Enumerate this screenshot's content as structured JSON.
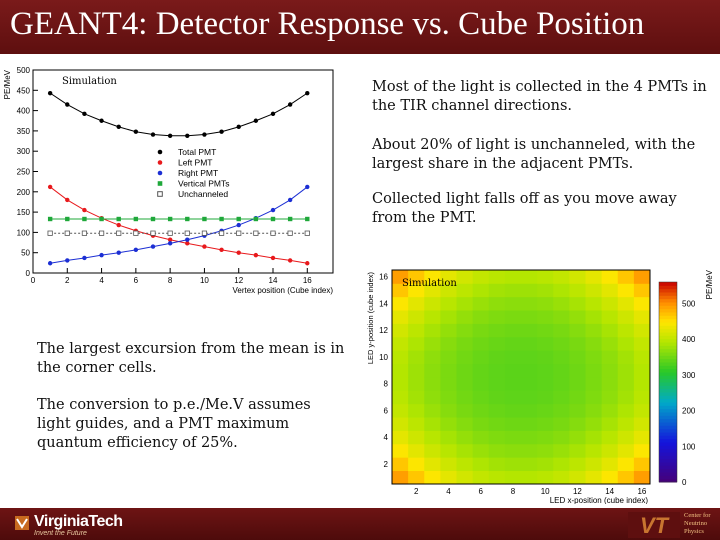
{
  "slide": {
    "title": "GEANT4: Detector Response vs. Cube Position",
    "bullets_right": [
      "Most of the light is collected in the 4 PMTs in the TIR channel directions.",
      "About 20% of light is unchanneled, with the largest share in the adjacent PMTs.",
      "Collected light falls off as you move away from the PMT."
    ],
    "bullets_left": [
      "The largest excursion from the mean is in the corner cells.",
      "The conversion to p.e./Me.V assumes light guides, and a PMT maximum quantum efficiency of 25%."
    ]
  },
  "footer": {
    "logo_name": "VirginiaTech",
    "logo_tagline": "Invent the Future",
    "vt_mark": "VT",
    "center_label": [
      "Center for",
      "Neutrino",
      "Physics"
    ]
  },
  "colors": {
    "title_bar": "#6b1414",
    "total": "#000000",
    "left": "#e8191c",
    "right": "#1c2fd4",
    "vertical": "#1fa83a",
    "unchanneled": "#555555"
  },
  "chart_data": [
    {
      "type": "line",
      "sim_label": "Simulation",
      "ylabel": "PE/MeV",
      "xlabel": "Vertex position (Cube index)",
      "xlim": [
        0,
        17.5
      ],
      "ylim": [
        0,
        500
      ],
      "xticks": [
        0,
        2,
        4,
        6,
        8,
        10,
        12,
        14,
        16
      ],
      "yticks": [
        0,
        50,
        100,
        150,
        200,
        250,
        300,
        350,
        400,
        450,
        500
      ],
      "x": [
        1,
        2,
        3,
        4,
        5,
        6,
        7,
        8,
        9,
        10,
        11,
        12,
        13,
        14,
        15,
        16
      ],
      "series": [
        {
          "name": "Total PMT",
          "key": "total",
          "marker": "circle",
          "values": [
            443,
            415,
            392,
            375,
            360,
            348,
            341,
            338,
            338,
            341,
            348,
            360,
            375,
            392,
            415,
            443
          ]
        },
        {
          "name": "Left PMT",
          "key": "left",
          "marker": "circle",
          "values": [
            212,
            180,
            155,
            135,
            118,
            104,
            92,
            82,
            73,
            65,
            57,
            50,
            44,
            37,
            31,
            24
          ]
        },
        {
          "name": "Right PMT",
          "key": "right",
          "marker": "circle",
          "values": [
            24,
            31,
            37,
            44,
            50,
            57,
            65,
            73,
            82,
            92,
            104,
            118,
            135,
            155,
            180,
            212
          ]
        },
        {
          "name": "Vertical PMTs",
          "key": "vertical",
          "marker": "square",
          "values": [
            133,
            133,
            133,
            133,
            133,
            133,
            133,
            133,
            133,
            133,
            133,
            133,
            133,
            133,
            133,
            133
          ]
        },
        {
          "name": "Unchanneled",
          "key": "unchanneled",
          "marker": "open-square",
          "values": [
            98,
            98,
            98,
            98,
            98,
            98,
            98,
            98,
            98,
            98,
            98,
            98,
            98,
            98,
            98,
            98
          ]
        }
      ]
    },
    {
      "type": "heatmap",
      "sim_label": "Simulation",
      "xlabel": "LED x-position (cube index)",
      "ylabel": "LED y-position (cube index)",
      "zlabel": "PE/MeV",
      "xticks": [
        2,
        4,
        6,
        8,
        10,
        12,
        14,
        16
      ],
      "yticks": [
        2,
        4,
        6,
        8,
        10,
        12,
        14,
        16
      ],
      "zticks": [
        0,
        100,
        200,
        300,
        400,
        500
      ],
      "zlim": [
        0,
        560
      ],
      "grid_size": 16,
      "center_value": 338,
      "edge_value": 445,
      "corner_value": 525
    }
  ]
}
